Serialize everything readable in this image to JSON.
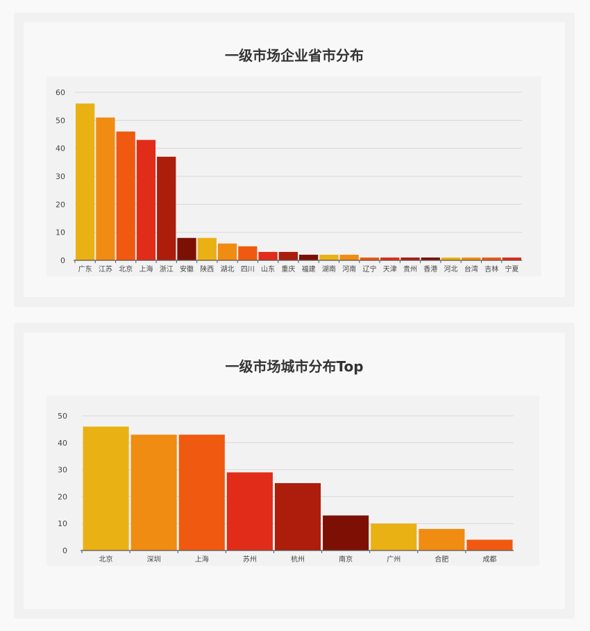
{
  "colors": {
    "palette": [
      "#e9b114",
      "#f08c12",
      "#f05a10",
      "#e12c19",
      "#ad1d0b",
      "#7c1005"
    ],
    "grid": "#d8d8d8",
    "axis": "#555555",
    "tick_text": "#444444",
    "title_text": "#333333"
  },
  "chart_data": [
    {
      "type": "bar",
      "title": "一级市场企业省市分布",
      "xlabel": "",
      "ylabel": "",
      "ylim": [
        0,
        60
      ],
      "yticks": [
        0,
        10,
        20,
        30,
        40,
        50,
        60
      ],
      "grid": true,
      "legend": "none",
      "categories": [
        "广东",
        "江苏",
        "北京",
        "上海",
        "浙江",
        "安徽",
        "陕西",
        "湖北",
        "四川",
        "山东",
        "重庆",
        "福建",
        "湖南",
        "河南",
        "辽宁",
        "天津",
        "贵州",
        "香港",
        "河北",
        "台湾",
        "吉林",
        "宁夏"
      ],
      "values": [
        56,
        51,
        46,
        43,
        37,
        8,
        8,
        6,
        5,
        3,
        3,
        2,
        2,
        2,
        1,
        1,
        1,
        1,
        1,
        1,
        1,
        1
      ]
    },
    {
      "type": "bar",
      "title": "一级市场城市分布Top",
      "xlabel": "",
      "ylabel": "",
      "ylim": [
        0,
        50
      ],
      "yticks": [
        0,
        10,
        20,
        30,
        40,
        50
      ],
      "grid": true,
      "legend": "none",
      "categories": [
        "北京",
        "深圳",
        "上海",
        "苏州",
        "杭州",
        "南京",
        "广州",
        "合肥",
        "成都"
      ],
      "values": [
        46,
        43,
        43,
        29,
        25,
        13,
        10,
        8,
        4
      ]
    }
  ]
}
